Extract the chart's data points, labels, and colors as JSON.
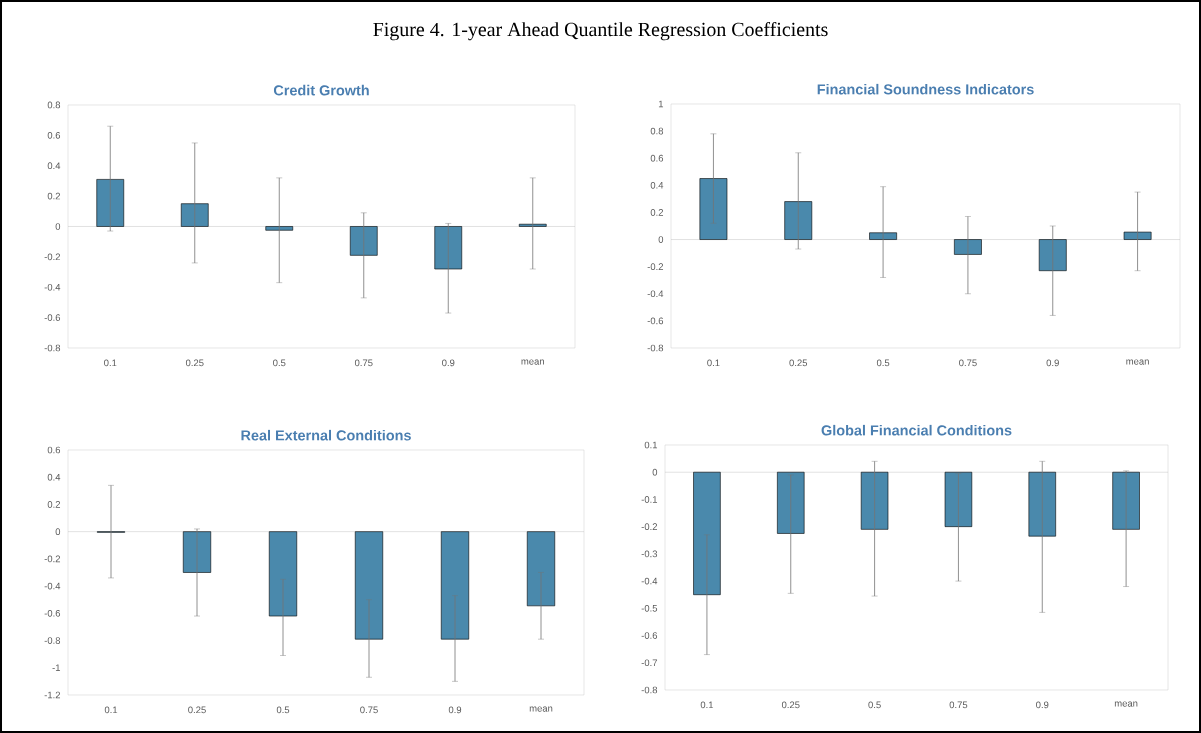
{
  "chart_data": [
    {
      "type": "bar",
      "title": "Figure 4. 1-year Ahead Quantile Regression Coefficients",
      "subtitle": "Credit Growth",
      "categories": [
        "0.1",
        "0.25",
        "0.5",
        "0.75",
        "0.9",
        "mean"
      ],
      "color": "#4a89ac",
      "values": [
        0.31,
        0.15,
        -0.025,
        -0.19,
        -0.28,
        0.015
      ],
      "errors": [
        [
          -0.03,
          0.66
        ],
        [
          -0.24,
          0.55
        ],
        [
          -0.37,
          0.32
        ],
        [
          -0.47,
          0.09
        ],
        [
          -0.57,
          0.02
        ],
        [
          -0.28,
          0.32
        ]
      ],
      "ylim": [
        -0.8,
        0.8
      ],
      "yticks": [
        -0.8,
        -0.6,
        -0.4,
        -0.2,
        0,
        0.2,
        0.4,
        0.6,
        0.8
      ]
    },
    {
      "type": "bar",
      "title": "Financial Soundness Indicators",
      "categories": [
        "0.1",
        "0.25",
        "0.5",
        "0.75",
        "0.9",
        "mean"
      ],
      "color": "#4a89ac",
      "values": [
        0.45,
        0.28,
        0.05,
        -0.11,
        -0.23,
        0.055
      ],
      "errors": [
        [
          0.12,
          0.78
        ],
        [
          -0.07,
          0.64
        ],
        [
          -0.28,
          0.39
        ],
        [
          -0.4,
          0.17
        ],
        [
          -0.56,
          0.1
        ],
        [
          -0.23,
          0.35
        ]
      ],
      "ylim": [
        -0.8,
        1
      ],
      "yticks": [
        -0.8,
        -0.6,
        -0.4,
        -0.2,
        0,
        0.2,
        0.4,
        0.6,
        0.8,
        1
      ]
    },
    {
      "type": "bar",
      "title": "Real External Conditions",
      "categories": [
        "0.1",
        "0.25",
        "0.5",
        "0.75",
        "0.9",
        "mean"
      ],
      "color": "#4a89ac",
      "values": [
        -0.005,
        -0.3,
        -0.62,
        -0.79,
        -0.79,
        -0.545
      ],
      "errors": [
        [
          -0.34,
          0.34
        ],
        [
          -0.62,
          0.02
        ],
        [
          -0.91,
          -0.35
        ],
        [
          -1.07,
          -0.5
        ],
        [
          -1.1,
          -0.47
        ],
        [
          -0.79,
          -0.3
        ]
      ],
      "ylim": [
        -1.2,
        0.6
      ],
      "yticks": [
        -1.2,
        -1,
        -0.8,
        -0.6,
        -0.4,
        -0.2,
        0,
        0.2,
        0.4,
        0.6
      ]
    },
    {
      "type": "bar",
      "title": "Global Financial Conditions",
      "categories": [
        "0.1",
        "0.25",
        "0.5",
        "0.75",
        "0.9",
        "mean"
      ],
      "color": "#4a89ac",
      "values": [
        -0.45,
        -0.225,
        -0.21,
        -0.2,
        -0.235,
        -0.21
      ],
      "errors": [
        [
          -0.67,
          -0.23
        ],
        [
          -0.445,
          -0.01
        ],
        [
          -0.455,
          0.04
        ],
        [
          -0.4,
          -0.005
        ],
        [
          -0.515,
          0.04
        ],
        [
          -0.42,
          0.005
        ]
      ],
      "ylim": [
        -0.8,
        0.1
      ],
      "yticks": [
        -0.8,
        -0.7,
        -0.6,
        -0.5,
        -0.4,
        -0.3,
        -0.2,
        -0.1,
        0,
        0.1
      ]
    }
  ]
}
